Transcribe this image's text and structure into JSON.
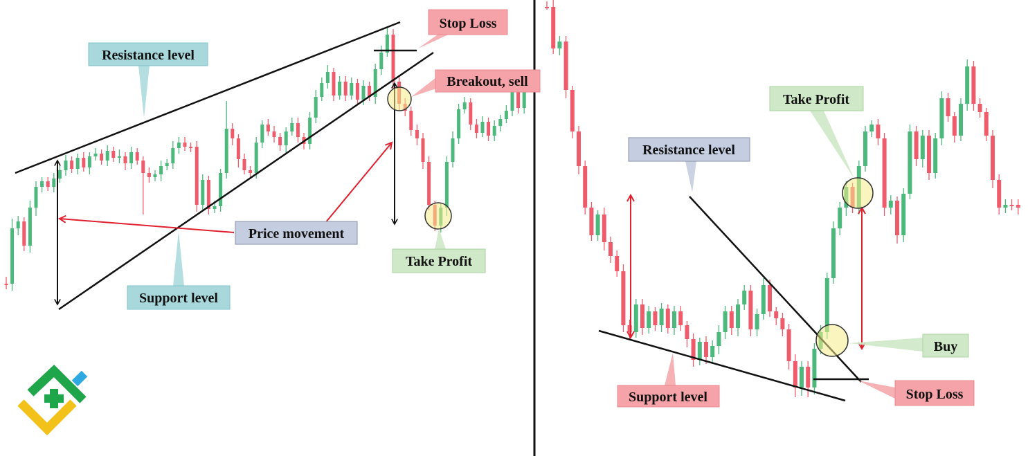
{
  "colors": {
    "bull": "#4cb87c",
    "bear": "#ee5b6b",
    "trendline": "#111111",
    "arrow_red": "#e0202e",
    "teal_label": "#a8d8dc",
    "teal_border": "#7fc4cb",
    "red_label": "#f5a3a8",
    "red_border": "#e88a90",
    "green_label": "#cfe8c8",
    "green_border": "#a8d3a0",
    "slate_label": "#c5cde0",
    "slate_border": "#8a92a8",
    "circle_fill": "#f6ec8a",
    "logo_green": "#1fa64a",
    "logo_yellow": "#f2c21b",
    "logo_blue": "#2ea8e0"
  },
  "chart_data": [
    {
      "type": "candlestick",
      "panel": "left",
      "pattern": "rising wedge",
      "annotations": {
        "resistance": "Resistance level",
        "support": "Support level",
        "price_movement": "Price movement",
        "stop_loss": "Stop Loss",
        "breakout": "Breakout, sell",
        "take_profit": "Take Profit"
      }
    },
    {
      "type": "candlestick",
      "panel": "right",
      "pattern": "falling wedge",
      "annotations": {
        "resistance": "Resistance level",
        "support": "Support level",
        "take_profit": "Take Profit",
        "buy": "Buy",
        "stop_loss": "Stop Loss"
      }
    }
  ],
  "logo": {
    "icon": "litefinance-logo-icon"
  }
}
